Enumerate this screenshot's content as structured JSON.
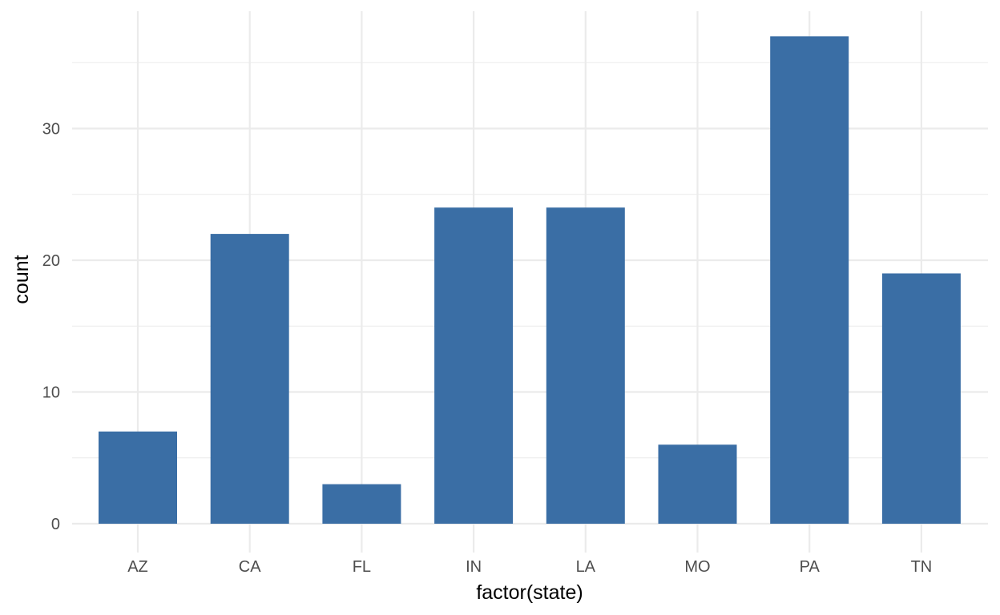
{
  "chart_data": {
    "type": "bar",
    "categories": [
      "AZ",
      "CA",
      "FL",
      "IN",
      "LA",
      "MO",
      "PA",
      "TN"
    ],
    "values": [
      7,
      22,
      3,
      24,
      24,
      6,
      37,
      19
    ],
    "xlabel": "factor(state)",
    "ylabel": "count",
    "ylim": [
      0,
      40
    ],
    "y_ticks": [
      0,
      10,
      20,
      30
    ],
    "grid": true,
    "bar_color": "#3a6ea5",
    "grid_color": "#ebebeb"
  }
}
